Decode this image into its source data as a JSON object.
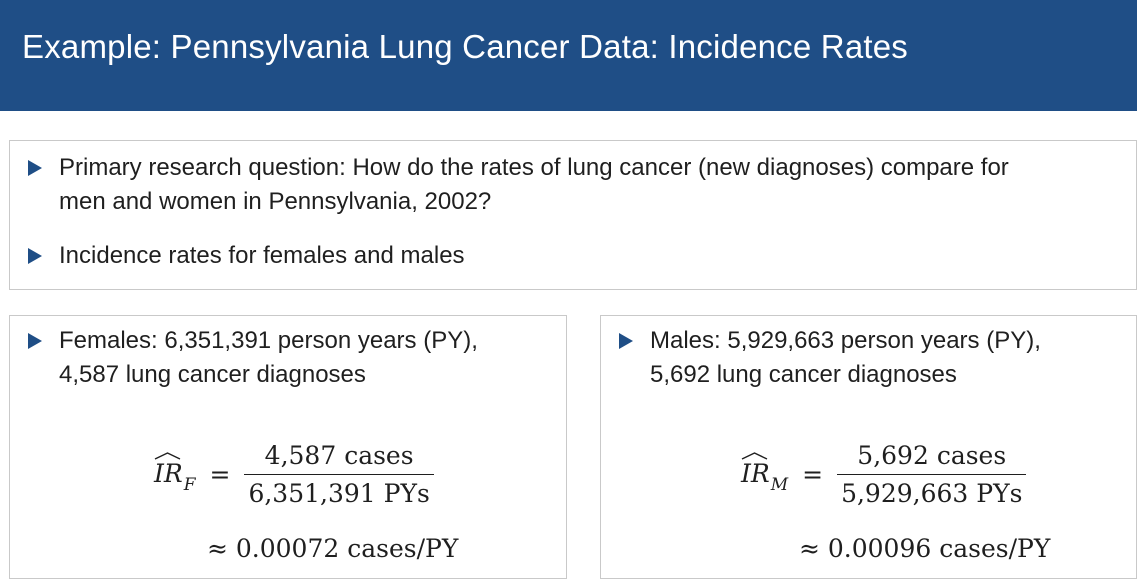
{
  "header": {
    "title": "Example: Pennsylvania Lung Cancer Data: Incidence Rates",
    "background_color": "#1f4e86"
  },
  "intro": {
    "bullets": [
      "Primary research question: How do the rates of lung cancer (new diagnoses) compare for\nmen and women in Pennsylvania, 2002?",
      "Incidence rates for females and males"
    ]
  },
  "females": {
    "bullet": "Females: 6,351,391 person years (PY),\n4,587 lung cancer diagnoses",
    "formula": {
      "symbol": "IR",
      "subscript": "F",
      "equals": "=",
      "numerator": "4,587 cases",
      "denominator": "6,351,391 PYs"
    },
    "result": "≈ 0.00072 cases/PY"
  },
  "males": {
    "bullet": "Males: 5,929,663 person years (PY),\n5,692 lung cancer diagnoses",
    "formula": {
      "symbol": "IR",
      "subscript": "M",
      "equals": "=",
      "numerator": "5,692 cases",
      "denominator": "5,929,663 PYs"
    },
    "result": "≈ 0.00096 cases/PY"
  },
  "icons": {
    "bullet": "triangle-bullet-icon",
    "hat": "hat-accent-icon"
  }
}
